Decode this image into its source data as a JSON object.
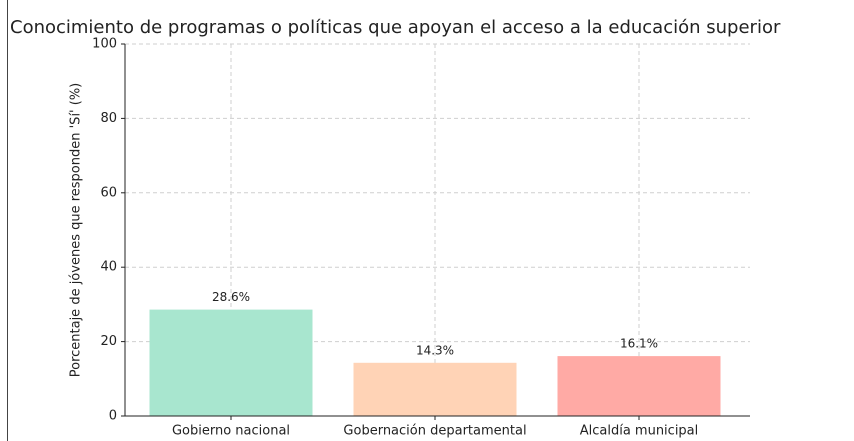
{
  "chart_data": {
    "type": "bar",
    "title": "Conocimiento de programas o políticas que apoyan el acceso a la educación superior",
    "ylabel": "Porcentaje de jóvenes que responden 'Sí' (%)",
    "categories": [
      "Gobierno nacional",
      "Gobernación departamental",
      "Alcaldía municipal"
    ],
    "values": [
      28.6,
      14.3,
      16.1
    ],
    "value_labels": [
      "28.6%",
      "14.3%",
      "16.1%"
    ],
    "colors": [
      "#a8e6cf",
      "#ffd3b6",
      "#ffaaa5"
    ],
    "ylim": [
      0,
      100
    ],
    "yticks": [
      0,
      20,
      40,
      60,
      80,
      100
    ],
    "grid": true
  }
}
